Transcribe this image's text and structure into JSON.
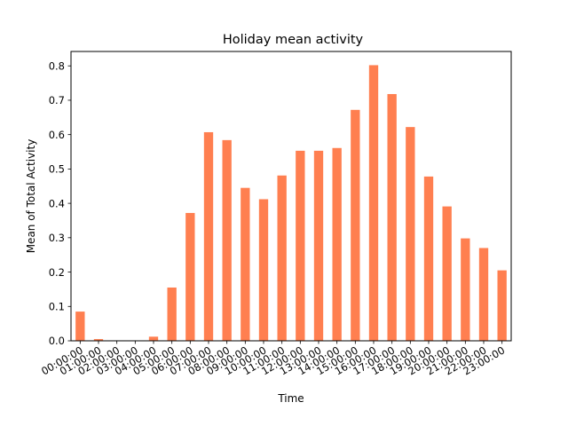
{
  "chart_data": {
    "type": "bar",
    "title": "Holiday mean activity",
    "xlabel": "Time",
    "ylabel": "Mean of Total Activity",
    "categories": [
      "00:00:00",
      "01:00:00",
      "02:00:00",
      "03:00:00",
      "04:00:00",
      "05:00:00",
      "06:00:00",
      "07:00:00",
      "08:00:00",
      "09:00:00",
      "10:00:00",
      "11:00:00",
      "12:00:00",
      "13:00:00",
      "14:00:00",
      "15:00:00",
      "16:00:00",
      "17:00:00",
      "18:00:00",
      "19:00:00",
      "20:00:00",
      "21:00:00",
      "22:00:00",
      "23:00:00"
    ],
    "values": [
      0.085,
      0.005,
      0.0,
      0.0,
      0.012,
      0.155,
      0.372,
      0.607,
      0.584,
      0.445,
      0.412,
      0.481,
      0.553,
      0.553,
      0.561,
      0.672,
      0.802,
      0.718,
      0.622,
      0.478,
      0.391,
      0.298,
      0.27,
      0.205
    ],
    "ylim": [
      0,
      0.8419
    ],
    "yticks": [
      "0.0",
      "0.1",
      "0.2",
      "0.3",
      "0.4",
      "0.5",
      "0.6",
      "0.7",
      "0.8"
    ],
    "bar_color": "#ff7f50",
    "grid": false,
    "legend": "none"
  }
}
